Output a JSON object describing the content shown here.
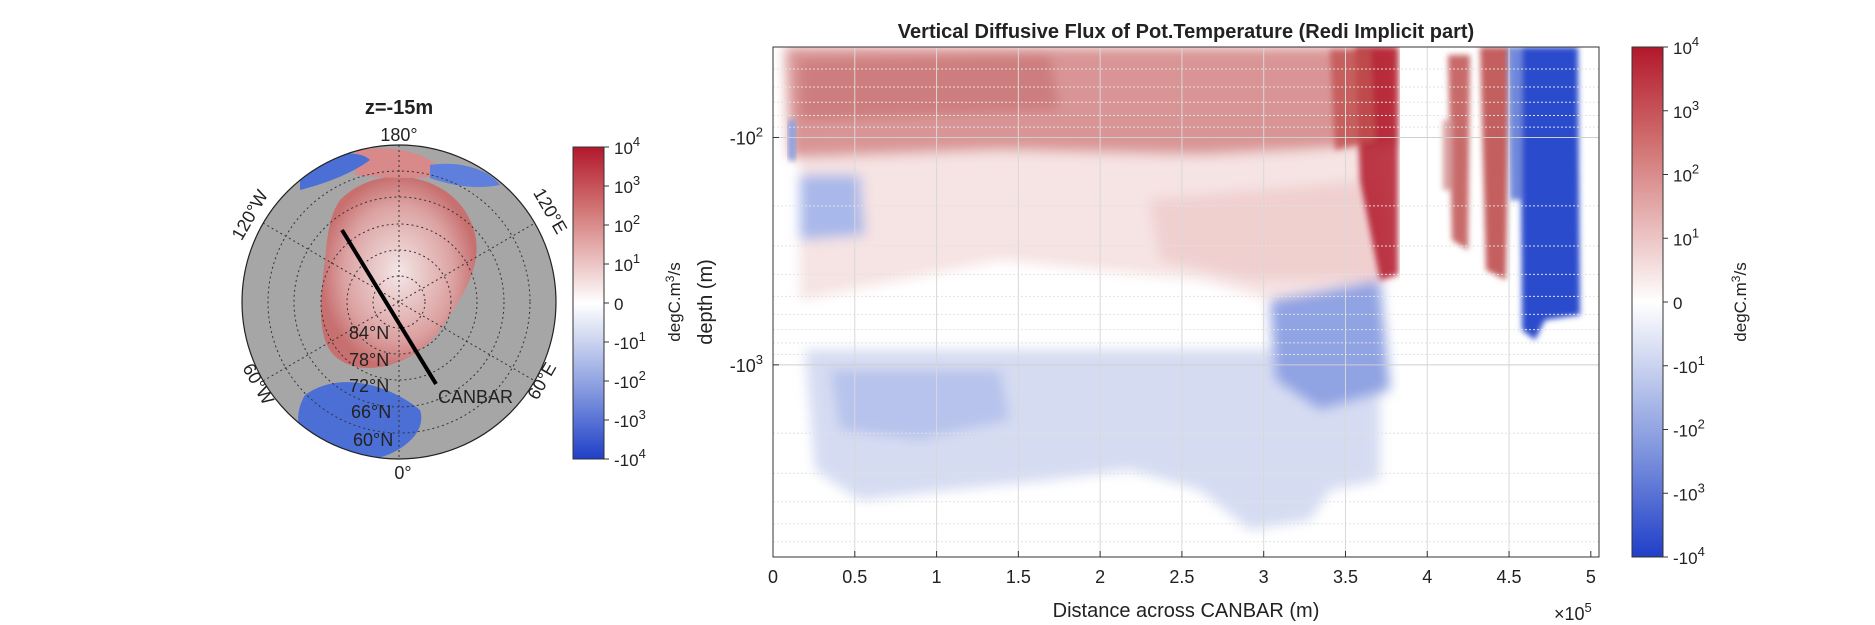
{
  "map_panel": {
    "title": "z=-15m",
    "longitude_labels": [
      "180°",
      "120°E",
      "60°E",
      "0°",
      "60°W",
      "120°W"
    ],
    "latitude_labels": [
      "84°N",
      "78°N",
      "72°N",
      "66°N",
      "60°N"
    ],
    "section_label": "CANBAR",
    "colorbar": {
      "label": "degC.m³/s",
      "ticks": [
        "10",
        "10",
        "10",
        "10",
        "0",
        "-10",
        "-10",
        "-10",
        "-10"
      ],
      "tick_exponents": [
        "4",
        "3",
        "2",
        "1",
        "",
        "1",
        "2",
        "3",
        "4"
      ]
    }
  },
  "section_panel": {
    "colorbar": {
      "label": "degC.m³/s",
      "ticks": [
        "10",
        "10",
        "10",
        "10",
        "0",
        "-10",
        "-10",
        "-10",
        "-10"
      ],
      "tick_exponents": [
        "4",
        "3",
        "2",
        "1",
        "",
        "1",
        "2",
        "3",
        "4"
      ]
    }
  },
  "colors": {
    "positive_max": "#b2182b",
    "neutral": "#ffffff",
    "negative_max": "#1f3fc8",
    "land": "#a6a6a6"
  },
  "chart_data": {
    "type": "heatmap",
    "title": "Vertical Diffusive Flux of Pot.Temperature (Redi Implicit part)",
    "xlabel": "Distance across CANBAR (m)",
    "ylabel": "depth (m)",
    "x_multiplier": "×10",
    "x_multiplier_exponent": "5",
    "xlim": [
      0,
      5.05
    ],
    "x_ticks": [
      "0",
      "0.5",
      "1",
      "1.5",
      "2",
      "2.5",
      "3",
      "3.5",
      "4",
      "4.5",
      "5"
    ],
    "y_scale": "log (symlog-style, negative depths)",
    "y_ticks": [
      "-10",
      "-10"
    ],
    "y_tick_exponents": [
      "2",
      "3"
    ],
    "grid": true,
    "colorscale": "diverging symmetric log, -10^4 to 10^4",
    "regions": [
      {
        "x": [
          0.1,
          3.8
        ],
        "depth": [
          -40,
          -78
        ],
        "sign": "positive",
        "magnitude": "10^2-10^4"
      },
      {
        "x": [
          3.4,
          3.8
        ],
        "depth": [
          -40,
          -500
        ],
        "sign": "positive",
        "magnitude": "10^3-10^4"
      },
      {
        "x": [
          0.2,
          3.6
        ],
        "depth": [
          -80,
          -500
        ],
        "sign": "positive",
        "magnitude": "10^0-10^2"
      },
      {
        "x": [
          0.25,
          0.6
        ],
        "depth": [
          -90,
          -120
        ],
        "sign": "negative",
        "magnitude": "10^1-10^2"
      },
      {
        "x": [
          2.9,
          3.6
        ],
        "depth": [
          -400,
          -900
        ],
        "sign": "negative",
        "magnitude": "10^1-10^3"
      },
      {
        "x": [
          0.2,
          3.7
        ],
        "depth": [
          -600,
          -6000
        ],
        "sign": "negative",
        "magnitude": "10^-1-10^2"
      },
      {
        "x": [
          4.15,
          4.55
        ],
        "depth": [
          -40,
          -400
        ],
        "sign": "positive",
        "magnitude": "10^2-10^3"
      },
      {
        "x": [
          4.55,
          4.95
        ],
        "depth": [
          -40,
          -750
        ],
        "sign": "negative",
        "magnitude": "10^2-10^4"
      }
    ]
  }
}
